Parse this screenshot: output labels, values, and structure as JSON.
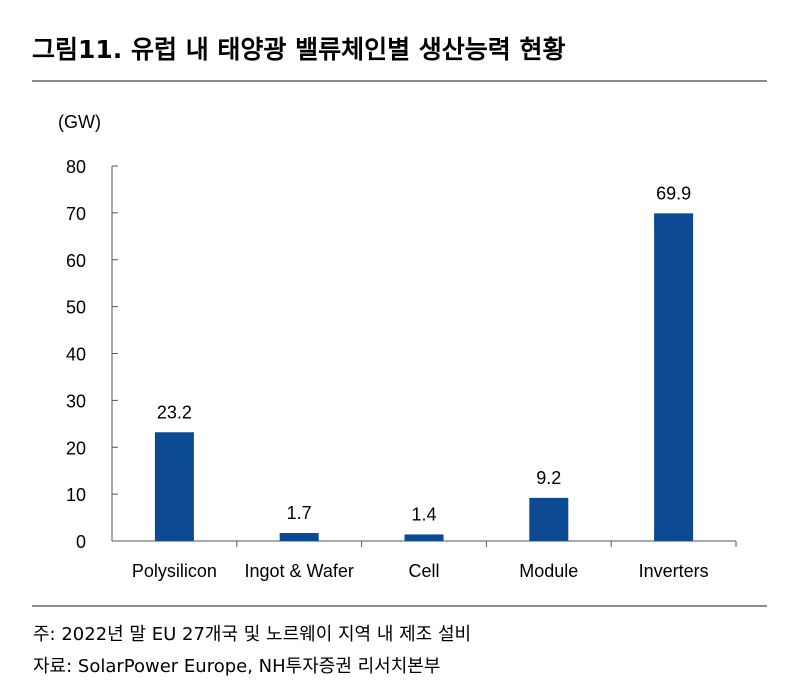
{
  "title": "그림11. 유럽 내 태양광 밸류체인별 생산능력 현황",
  "footnote": "주: 2022년 말 EU 27개국 및 노르웨이 지역 내 제조 설비",
  "source": "자료: SolarPower Europe, NH투자증권 리서치본부",
  "colors": {
    "bar": "#0d4a94",
    "axis": "#555555",
    "rule": "#8c8c8c"
  },
  "chart_data": {
    "type": "bar",
    "unit_label": "(GW)",
    "categories": [
      "Polysilicon",
      "Ingot & Wafer",
      "Cell",
      "Module",
      "Inverters"
    ],
    "values": [
      23.2,
      1.7,
      1.4,
      9.2,
      69.9
    ],
    "data_labels": [
      "23.2",
      "1.7",
      "1.4",
      "9.2",
      "69.9"
    ],
    "yticks": [
      0,
      10,
      20,
      30,
      40,
      50,
      60,
      70,
      80
    ],
    "ylim": [
      0,
      80
    ],
    "grid": false,
    "legend": "none"
  }
}
